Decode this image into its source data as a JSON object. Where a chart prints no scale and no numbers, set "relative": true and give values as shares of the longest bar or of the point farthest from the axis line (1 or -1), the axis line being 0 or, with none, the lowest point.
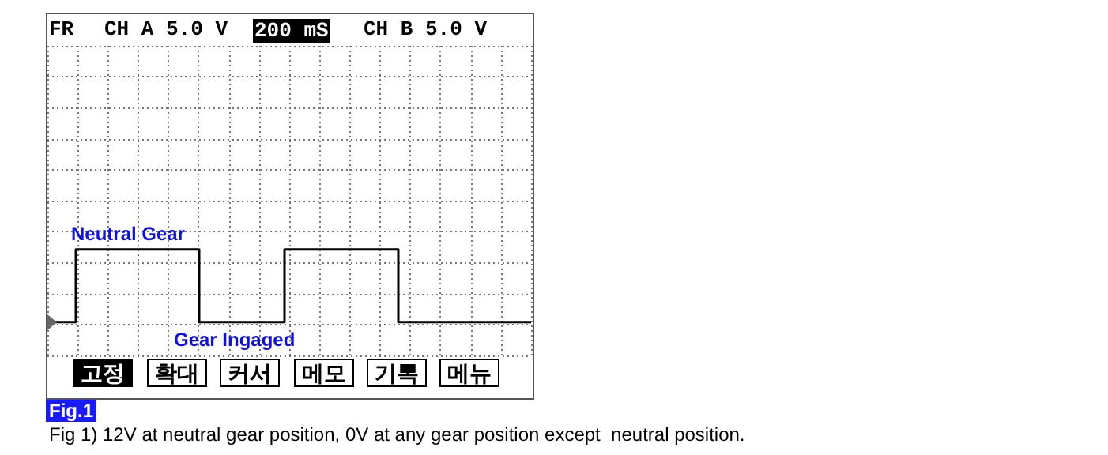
{
  "chart_data": {
    "type": "step",
    "title": "Fig.1",
    "relative": true,
    "grid": true,
    "line_style": "solid",
    "categories": [
      null,
      null,
      null,
      null,
      null,
      null,
      null,
      null,
      null,
      null,
      null,
      null,
      null,
      null,
      null,
      null,
      null,
      null,
      null,
      null,
      null,
      null,
      null,
      null,
      null,
      null,
      null,
      null,
      null,
      null,
      null,
      null,
      null,
      null,
      null,
      null,
      null,
      null,
      null,
      null,
      null,
      null,
      null,
      null,
      null,
      null,
      null,
      null,
      null,
      null,
      null,
      null
    ],
    "series": [
      {
        "color": "#000000",
        "values": [
          0,
          0,
          0,
          1,
          1,
          1,
          1,
          1,
          1,
          1,
          1,
          1,
          1,
          1,
          1,
          1,
          0,
          0,
          0,
          0,
          0,
          0,
          0,
          0,
          0,
          1,
          1,
          1,
          1,
          1,
          1,
          1,
          1,
          1,
          1,
          1,
          1,
          0,
          0,
          0,
          0,
          0,
          0,
          0,
          0,
          0,
          0,
          0,
          0,
          0,
          0,
          0
        ]
      }
    ],
    "annotations": [
      "FR",
      "CH A 5.0 V",
      "200 mS",
      "CH B 5.0 V",
      "Neutral Gear",
      "Gear Ingaged",
      "고정",
      "확대",
      "커서",
      "메모",
      "기록",
      "메뉴",
      "Fig 1) 12V at neutral gear position, 0V at any gear position except  neutral position."
    ]
  }
}
